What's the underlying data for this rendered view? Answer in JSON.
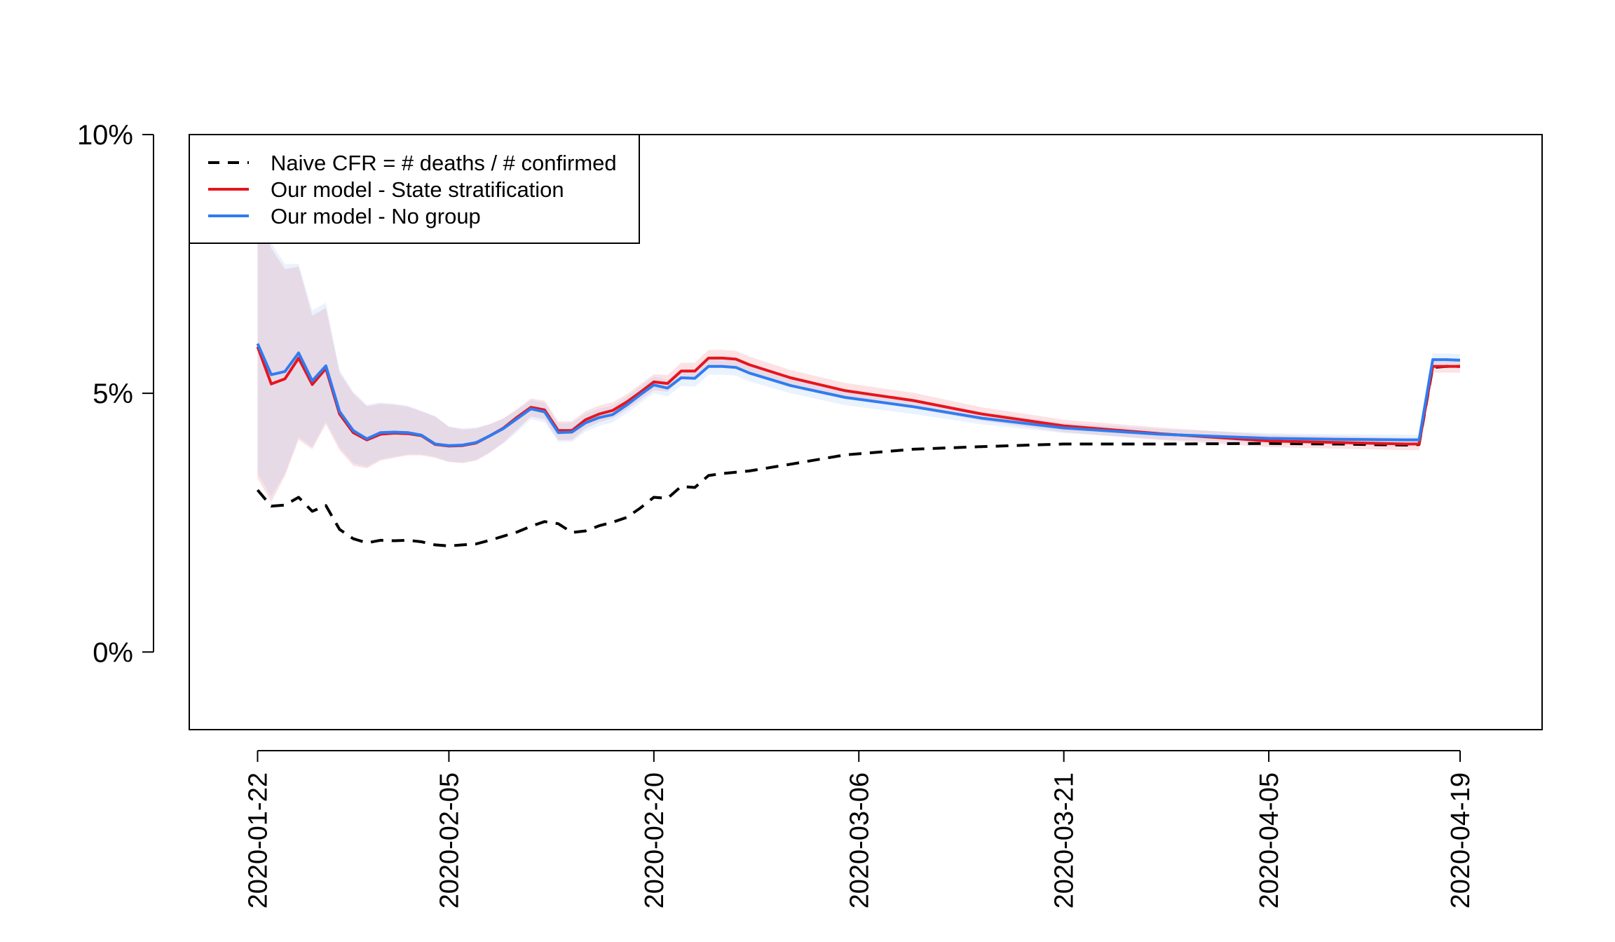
{
  "chart_data": {
    "type": "line",
    "title": "",
    "xlabel": "",
    "ylabel": "",
    "x_start": "2020-01-22",
    "x_end": "2020-04-19",
    "xlim": [
      "2020-01-17",
      "2020-04-25"
    ],
    "ylim": [
      -0.015,
      0.1
    ],
    "x_ticks": [
      "2020-01-22",
      "2020-02-05",
      "2020-02-20",
      "2020-03-06",
      "2020-03-21",
      "2020-04-05",
      "2020-04-19"
    ],
    "y_ticks": [
      {
        "value": 0.0,
        "label": "0%"
      },
      {
        "value": 0.05,
        "label": "5%"
      },
      {
        "value": 0.1,
        "label": "10%"
      }
    ],
    "legend": {
      "position": "top-left",
      "entries": [
        {
          "label": "Naive CFR = # deaths / # confirmed",
          "color": "#000000",
          "style": "dashed"
        },
        {
          "label": "Our model - State stratification",
          "color": "#e8141c",
          "style": "solid"
        },
        {
          "label": "Our model - No group",
          "color": "#2f7cf0",
          "style": "solid"
        }
      ]
    },
    "series": [
      {
        "name": "Naive CFR = # deaths / # confirmed",
        "color": "#000000",
        "dash": true,
        "x": [
          "2020-01-22",
          "2020-01-23",
          "2020-01-24",
          "2020-01-25",
          "2020-01-26",
          "2020-01-27",
          "2020-01-28",
          "2020-01-29",
          "2020-01-30",
          "2020-01-31",
          "2020-02-01",
          "2020-02-02",
          "2020-02-03",
          "2020-02-04",
          "2020-02-05",
          "2020-02-06",
          "2020-02-07",
          "2020-02-08",
          "2020-02-09",
          "2020-02-10",
          "2020-02-11",
          "2020-02-12",
          "2020-02-13",
          "2020-02-14",
          "2020-02-15",
          "2020-02-16",
          "2020-02-17",
          "2020-02-18",
          "2020-02-19",
          "2020-02-20",
          "2020-02-21",
          "2020-02-22",
          "2020-02-23",
          "2020-02-24",
          "2020-02-25",
          "2020-02-27",
          "2020-03-01",
          "2020-03-05",
          "2020-03-10",
          "2020-03-15",
          "2020-03-21",
          "2020-03-28",
          "2020-04-05",
          "2020-04-10",
          "2020-04-15",
          "2020-04-16",
          "2020-04-17",
          "2020-04-18",
          "2020-04-19"
        ],
        "values": [
          0.0313,
          0.0282,
          0.0284,
          0.0299,
          0.0272,
          0.0283,
          0.0237,
          0.0219,
          0.0211,
          0.0216,
          0.0215,
          0.0216,
          0.0213,
          0.0207,
          0.0205,
          0.0207,
          0.0209,
          0.0216,
          0.0224,
          0.0232,
          0.0243,
          0.0252,
          0.0248,
          0.0231,
          0.0234,
          0.0244,
          0.0251,
          0.026,
          0.0278,
          0.0299,
          0.0297,
          0.032,
          0.0318,
          0.0341,
          0.0345,
          0.035,
          0.0363,
          0.0381,
          0.0392,
          0.0397,
          0.0402,
          0.0402,
          0.0403,
          0.0402,
          0.04,
          0.0401,
          0.055,
          0.0552,
          0.0552
        ]
      },
      {
        "name": "Our model - State stratification",
        "color": "#e8141c",
        "dash": false,
        "x": [
          "2020-01-22",
          "2020-01-23",
          "2020-01-24",
          "2020-01-25",
          "2020-01-26",
          "2020-01-27",
          "2020-01-28",
          "2020-01-29",
          "2020-01-30",
          "2020-01-31",
          "2020-02-01",
          "2020-02-02",
          "2020-02-03",
          "2020-02-04",
          "2020-02-05",
          "2020-02-06",
          "2020-02-07",
          "2020-02-08",
          "2020-02-09",
          "2020-02-10",
          "2020-02-11",
          "2020-02-12",
          "2020-02-13",
          "2020-02-14",
          "2020-02-15",
          "2020-02-16",
          "2020-02-17",
          "2020-02-18",
          "2020-02-19",
          "2020-02-20",
          "2020-02-21",
          "2020-02-22",
          "2020-02-23",
          "2020-02-24",
          "2020-02-25",
          "2020-02-26",
          "2020-02-27",
          "2020-03-01",
          "2020-03-05",
          "2020-03-10",
          "2020-03-15",
          "2020-03-21",
          "2020-03-28",
          "2020-04-05",
          "2020-04-10",
          "2020-04-15",
          "2020-04-16",
          "2020-04-17",
          "2020-04-18",
          "2020-04-19"
        ],
        "values": [
          0.059,
          0.0518,
          0.0528,
          0.0568,
          0.0517,
          0.0548,
          0.046,
          0.0424,
          0.041,
          0.0421,
          0.0423,
          0.0422,
          0.0418,
          0.0401,
          0.0398,
          0.0399,
          0.0404,
          0.0418,
          0.0433,
          0.0454,
          0.0473,
          0.0468,
          0.0428,
          0.0428,
          0.0449,
          0.046,
          0.0467,
          0.0483,
          0.0502,
          0.0522,
          0.0519,
          0.0543,
          0.0543,
          0.0568,
          0.0568,
          0.0566,
          0.0555,
          0.053,
          0.0505,
          0.0486,
          0.046,
          0.0437,
          0.0422,
          0.0408,
          0.0405,
          0.0402,
          0.0402,
          0.0552,
          0.0552,
          0.0552
        ]
      },
      {
        "name": "Our model - No group",
        "color": "#2f7cf0",
        "dash": false,
        "x": [
          "2020-01-22",
          "2020-01-23",
          "2020-01-24",
          "2020-01-25",
          "2020-01-26",
          "2020-01-27",
          "2020-01-28",
          "2020-01-29",
          "2020-01-30",
          "2020-01-31",
          "2020-02-01",
          "2020-02-02",
          "2020-02-03",
          "2020-02-04",
          "2020-02-05",
          "2020-02-06",
          "2020-02-07",
          "2020-02-08",
          "2020-02-09",
          "2020-02-10",
          "2020-02-11",
          "2020-02-12",
          "2020-02-13",
          "2020-02-14",
          "2020-02-15",
          "2020-02-16",
          "2020-02-17",
          "2020-02-18",
          "2020-02-19",
          "2020-02-20",
          "2020-02-21",
          "2020-02-22",
          "2020-02-23",
          "2020-02-24",
          "2020-02-25",
          "2020-02-26",
          "2020-02-27",
          "2020-03-01",
          "2020-03-05",
          "2020-03-10",
          "2020-03-15",
          "2020-03-21",
          "2020-03-28",
          "2020-04-05",
          "2020-04-10",
          "2020-04-15",
          "2020-04-16",
          "2020-04-17",
          "2020-04-18",
          "2020-04-19"
        ],
        "values": [
          0.0596,
          0.0536,
          0.0542,
          0.0578,
          0.0524,
          0.0553,
          0.0465,
          0.0428,
          0.0412,
          0.0424,
          0.0425,
          0.0424,
          0.0419,
          0.0402,
          0.0399,
          0.04,
          0.0405,
          0.0418,
          0.0432,
          0.0451,
          0.047,
          0.0464,
          0.0424,
          0.0425,
          0.0443,
          0.0453,
          0.0459,
          0.0477,
          0.0497,
          0.0516,
          0.051,
          0.053,
          0.0529,
          0.0552,
          0.0552,
          0.055,
          0.0539,
          0.0515,
          0.0492,
          0.0474,
          0.0452,
          0.0433,
          0.0421,
          0.0413,
          0.0411,
          0.041,
          0.041,
          0.0565,
          0.0565,
          0.0564
        ]
      }
    ],
    "bands": [
      {
        "name": "Our model - State stratification interval",
        "color": "#f07c82",
        "x": [
          "2020-01-22",
          "2020-01-23",
          "2020-01-24",
          "2020-01-25",
          "2020-01-26",
          "2020-01-27",
          "2020-01-28",
          "2020-01-29",
          "2020-01-30",
          "2020-01-31",
          "2020-02-01",
          "2020-02-02",
          "2020-02-03",
          "2020-02-04",
          "2020-02-05",
          "2020-02-06",
          "2020-02-07",
          "2020-02-08",
          "2020-02-09",
          "2020-02-10",
          "2020-02-11",
          "2020-02-12",
          "2020-02-13",
          "2020-02-14",
          "2020-02-15",
          "2020-02-16",
          "2020-02-17",
          "2020-02-18",
          "2020-02-19",
          "2020-02-20",
          "2020-02-21",
          "2020-02-22",
          "2020-02-23",
          "2020-02-24",
          "2020-02-25",
          "2020-02-26",
          "2020-02-27",
          "2020-03-01",
          "2020-03-05",
          "2020-03-10",
          "2020-03-15",
          "2020-03-21",
          "2020-03-28",
          "2020-04-05",
          "2020-04-10",
          "2020-04-15",
          "2020-04-16",
          "2020-04-17",
          "2020-04-18",
          "2020-04-19"
        ],
        "lower": [
          0.0335,
          0.029,
          0.034,
          0.041,
          0.0392,
          0.044,
          0.039,
          0.036,
          0.0355,
          0.037,
          0.0375,
          0.038,
          0.038,
          0.0375,
          0.0367,
          0.0365,
          0.037,
          0.0385,
          0.0405,
          0.043,
          0.0455,
          0.045,
          0.041,
          0.041,
          0.0432,
          0.0444,
          0.0452,
          0.0468,
          0.0487,
          0.0506,
          0.0503,
          0.0527,
          0.0527,
          0.0552,
          0.0552,
          0.055,
          0.0539,
          0.0515,
          0.049,
          0.0471,
          0.0447,
          0.0425,
          0.041,
          0.0396,
          0.0393,
          0.039,
          0.039,
          0.054,
          0.054,
          0.054
        ],
        "upper": [
          0.086,
          0.078,
          0.074,
          0.0745,
          0.065,
          0.0665,
          0.054,
          0.05,
          0.0475,
          0.048,
          0.0478,
          0.0474,
          0.0465,
          0.0455,
          0.0435,
          0.043,
          0.0432,
          0.044,
          0.0452,
          0.047,
          0.049,
          0.0486,
          0.0446,
          0.0446,
          0.0466,
          0.0476,
          0.0483,
          0.0498,
          0.0517,
          0.0537,
          0.0535,
          0.0559,
          0.0559,
          0.0584,
          0.0584,
          0.0582,
          0.0571,
          0.0545,
          0.052,
          0.0501,
          0.0473,
          0.0449,
          0.0434,
          0.042,
          0.0417,
          0.0414,
          0.0414,
          0.0565,
          0.0565,
          0.0565
        ]
      },
      {
        "name": "Our model - No group interval",
        "color": "#8db9f5",
        "x": [
          "2020-01-22",
          "2020-01-23",
          "2020-01-24",
          "2020-01-25",
          "2020-01-26",
          "2020-01-27",
          "2020-01-28",
          "2020-01-29",
          "2020-01-30",
          "2020-01-31",
          "2020-02-01",
          "2020-02-02",
          "2020-02-03",
          "2020-02-04",
          "2020-02-05",
          "2020-02-06",
          "2020-02-07",
          "2020-02-08",
          "2020-02-09",
          "2020-02-10",
          "2020-02-11",
          "2020-02-12",
          "2020-02-13",
          "2020-02-14",
          "2020-02-15",
          "2020-02-16",
          "2020-02-17",
          "2020-02-18",
          "2020-02-19",
          "2020-02-20",
          "2020-02-21",
          "2020-02-22",
          "2020-02-23",
          "2020-02-24",
          "2020-02-25",
          "2020-02-26",
          "2020-02-27",
          "2020-03-01",
          "2020-03-05",
          "2020-03-10",
          "2020-03-15",
          "2020-03-21",
          "2020-03-28",
          "2020-04-05",
          "2020-04-10",
          "2020-04-15",
          "2020-04-16",
          "2020-04-17",
          "2020-04-18",
          "2020-04-19"
        ],
        "lower": [
          0.0345,
          0.03,
          0.0345,
          0.0415,
          0.0396,
          0.0445,
          0.0395,
          0.0365,
          0.0358,
          0.0372,
          0.0377,
          0.0382,
          0.0382,
          0.0377,
          0.0368,
          0.0366,
          0.0371,
          0.0386,
          0.0403,
          0.0425,
          0.045,
          0.0444,
          0.0406,
          0.0406,
          0.0426,
          0.0437,
          0.0444,
          0.0461,
          0.0481,
          0.05,
          0.0494,
          0.0514,
          0.0513,
          0.0536,
          0.0536,
          0.0534,
          0.0523,
          0.05,
          0.0477,
          0.046,
          0.044,
          0.0423,
          0.0411,
          0.0403,
          0.0401,
          0.04,
          0.04,
          0.0553,
          0.0553,
          0.0552
        ],
        "upper": [
          0.087,
          0.079,
          0.075,
          0.075,
          0.066,
          0.0675,
          0.0545,
          0.0503,
          0.0478,
          0.0482,
          0.048,
          0.0476,
          0.0466,
          0.0456,
          0.0436,
          0.0432,
          0.0434,
          0.0441,
          0.0451,
          0.0468,
          0.0487,
          0.0482,
          0.0442,
          0.0443,
          0.0461,
          0.047,
          0.0476,
          0.0493,
          0.0513,
          0.0532,
          0.0526,
          0.0546,
          0.0545,
          0.0568,
          0.0568,
          0.0566,
          0.0555,
          0.053,
          0.0507,
          0.0488,
          0.0464,
          0.0443,
          0.0431,
          0.0423,
          0.0421,
          0.042,
          0.042,
          0.0577,
          0.0577,
          0.0576
        ]
      }
    ]
  }
}
